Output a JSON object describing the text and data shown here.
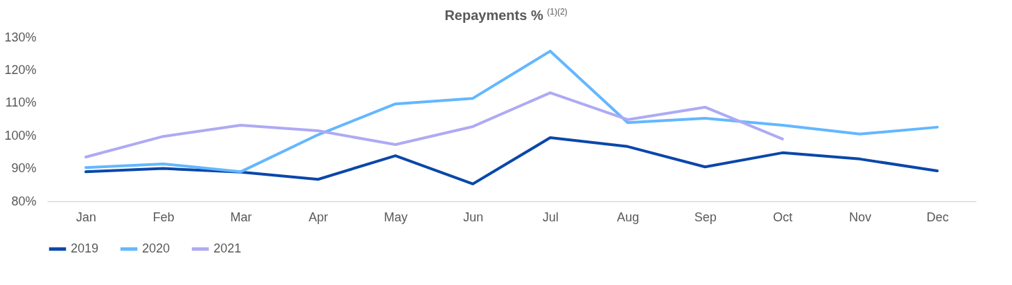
{
  "chart_data": {
    "type": "line",
    "title": "Repayments % $^{(1)(2)}$",
    "categories": [
      "Jan",
      "Feb",
      "Mar",
      "Apr",
      "May",
      "Jun",
      "Jul",
      "Aug",
      "Sep",
      "Oct",
      "Nov",
      "Dec"
    ],
    "series": [
      {
        "name": "2019",
        "color": "#0a47a9",
        "values": [
          89,
          90,
          88.9,
          86.7,
          93.9,
          85.3,
          99.4,
          96.7,
          90.5,
          94.8,
          92.9,
          89.3
        ]
      },
      {
        "name": "2020",
        "color": "#63b7ff",
        "values": [
          90.3,
          91.4,
          89,
          100.3,
          109.7,
          111.4,
          125.8,
          104,
          105.3,
          103.2,
          100.5,
          102.6
        ]
      },
      {
        "name": "2021",
        "color": "#aeaaf4",
        "values": [
          93.5,
          99.8,
          103.2,
          101.5,
          97.3,
          102.8,
          113.1,
          104.9,
          108.7,
          99,
          null,
          null
        ]
      }
    ],
    "ylim": [
      80,
      130
    ],
    "yticks": [
      {
        "value": 80,
        "label": "80%"
      },
      {
        "value": 90,
        "label": "90%"
      },
      {
        "value": 100,
        "label": "100%"
      },
      {
        "value": 110,
        "label": "110%"
      },
      {
        "value": 120,
        "label": "120%"
      },
      {
        "value": 130,
        "label": "130%"
      }
    ],
    "grid": false,
    "legend": "bottom",
    "marker": "none",
    "line_style": "solid"
  }
}
